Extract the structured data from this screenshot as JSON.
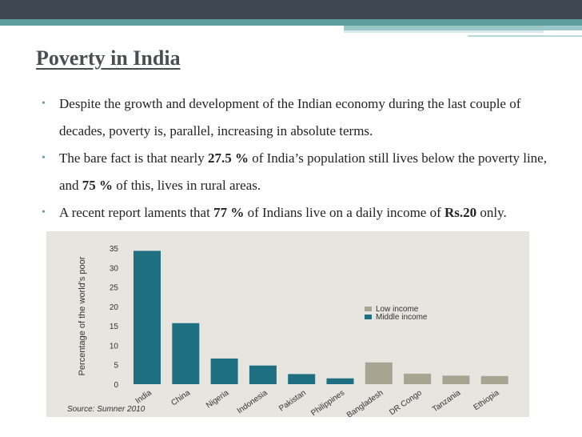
{
  "slide": {
    "title": "Poverty in India",
    "bullets": [
      {
        "parts": [
          {
            "t": "Despite the growth and development of the Indian economy during the last couple of decades, poverty is, parallel, increasing in absolute terms."
          }
        ]
      },
      {
        "parts": [
          {
            "t": "The bare fact is that nearly "
          },
          {
            "t": "27.5 %",
            "b": true
          },
          {
            "t": " of India’s population still lives below the poverty line, and "
          },
          {
            "t": "75 %",
            "b": true
          },
          {
            "t": " of this, lives in rural areas."
          }
        ]
      },
      {
        "parts": [
          {
            "t": "A recent report laments that "
          },
          {
            "t": "77 %",
            "b": true
          },
          {
            "t": " of Indians live on a daily income of "
          },
          {
            "t": "Rs.20",
            "b": true
          },
          {
            "t": " only."
          }
        ]
      }
    ]
  },
  "colors": {
    "low_income": "#a9a392",
    "middle_income": "#1f6f82",
    "accent": "#5f9ea0"
  },
  "chart_data": {
    "type": "bar",
    "ylabel": "Percentage of the world's poor",
    "ylim": [
      0,
      35
    ],
    "yticks": [
      0,
      5,
      10,
      15,
      20,
      25,
      30,
      35
    ],
    "categories": [
      "India",
      "China",
      "Nigeria",
      "Indonesia",
      "Pakistan",
      "Philippines",
      "Bangladesh",
      "DR Congo",
      "Tanzania",
      "Ethiopia"
    ],
    "values": [
      34.3,
      15.7,
      6.6,
      4.8,
      2.6,
      1.5,
      5.6,
      2.7,
      2.2,
      2.1
    ],
    "income_group": [
      "Middle income",
      "Middle income",
      "Middle income",
      "Middle income",
      "Middle income",
      "Middle income",
      "Low income",
      "Low income",
      "Low income",
      "Low income"
    ],
    "legend": [
      "Low income",
      "Middle income"
    ],
    "legend_position": "right",
    "source": "Source: Sumner 2010",
    "grid": false
  }
}
